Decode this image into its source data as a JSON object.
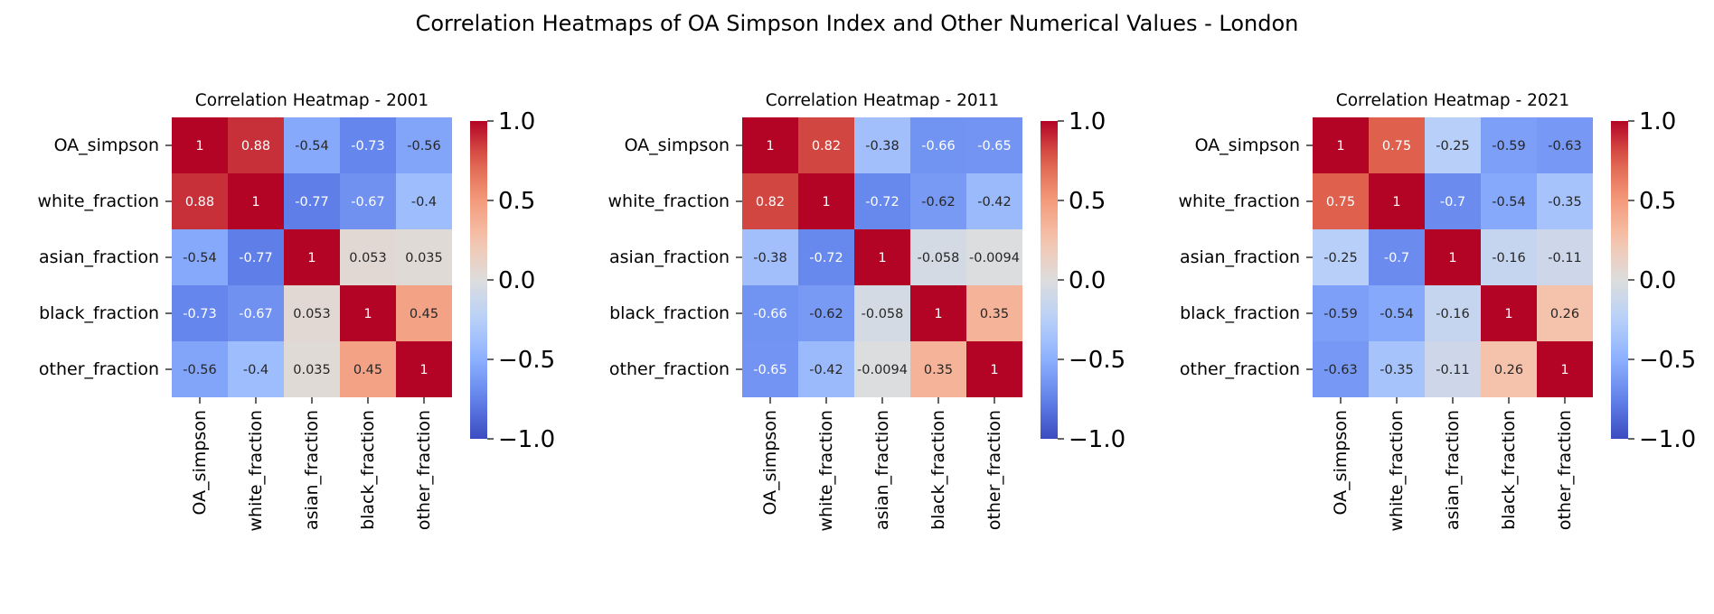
{
  "figure": {
    "title": "Correlation Heatmaps of OA Simpson Index and Other Numerical Values - London"
  },
  "chart_data": [
    {
      "type": "heatmap",
      "title": "Correlation Heatmap - 2001",
      "rows": [
        "OA_simpson",
        "white_fraction",
        "asian_fraction",
        "black_fraction",
        "other_fraction"
      ],
      "columns": [
        "OA_simpson",
        "white_fraction",
        "asian_fraction",
        "black_fraction",
        "other_fraction"
      ],
      "values": [
        [
          1,
          0.88,
          -0.54,
          -0.73,
          -0.56
        ],
        [
          0.88,
          1,
          -0.77,
          -0.67,
          -0.4
        ],
        [
          -0.54,
          -0.77,
          1,
          0.053,
          0.035
        ],
        [
          -0.73,
          -0.67,
          0.053,
          1,
          0.45
        ],
        [
          -0.56,
          -0.4,
          0.035,
          0.45,
          1
        ]
      ],
      "colormap": "coolwarm",
      "vmin": -1,
      "vmax": 1,
      "colorbar_ticks": [
        "1.0",
        "0.5",
        "0.0",
        "−0.5",
        "−1.0"
      ],
      "annot": true
    },
    {
      "type": "heatmap",
      "title": "Correlation Heatmap - 2011",
      "rows": [
        "OA_simpson",
        "white_fraction",
        "asian_fraction",
        "black_fraction",
        "other_fraction"
      ],
      "columns": [
        "OA_simpson",
        "white_fraction",
        "asian_fraction",
        "black_fraction",
        "other_fraction"
      ],
      "values": [
        [
          1,
          0.82,
          -0.38,
          -0.66,
          -0.65
        ],
        [
          0.82,
          1,
          -0.72,
          -0.62,
          -0.42
        ],
        [
          -0.38,
          -0.72,
          1,
          -0.058,
          -0.0094
        ],
        [
          -0.66,
          -0.62,
          -0.058,
          1,
          0.35
        ],
        [
          -0.65,
          -0.42,
          -0.0094,
          0.35,
          1
        ]
      ],
      "colormap": "coolwarm",
      "vmin": -1,
      "vmax": 1,
      "colorbar_ticks": [
        "1.0",
        "0.5",
        "0.0",
        "−0.5",
        "−1.0"
      ],
      "annot": true
    },
    {
      "type": "heatmap",
      "title": "Correlation Heatmap - 2021",
      "rows": [
        "OA_simpson",
        "white_fraction",
        "asian_fraction",
        "black_fraction",
        "other_fraction"
      ],
      "columns": [
        "OA_simpson",
        "white_fraction",
        "asian_fraction",
        "black_fraction",
        "other_fraction"
      ],
      "values": [
        [
          1,
          0.75,
          -0.25,
          -0.59,
          -0.63
        ],
        [
          0.75,
          1,
          -0.7,
          -0.54,
          -0.35
        ],
        [
          -0.25,
          -0.7,
          1,
          -0.16,
          -0.11
        ],
        [
          -0.59,
          -0.54,
          -0.16,
          1,
          0.26
        ],
        [
          -0.63,
          -0.35,
          -0.11,
          0.26,
          1
        ]
      ],
      "colormap": "coolwarm",
      "vmin": -1,
      "vmax": 1,
      "colorbar_ticks": [
        "1.0",
        "0.5",
        "0.0",
        "−0.5",
        "−1.0"
      ],
      "annot": true
    }
  ]
}
